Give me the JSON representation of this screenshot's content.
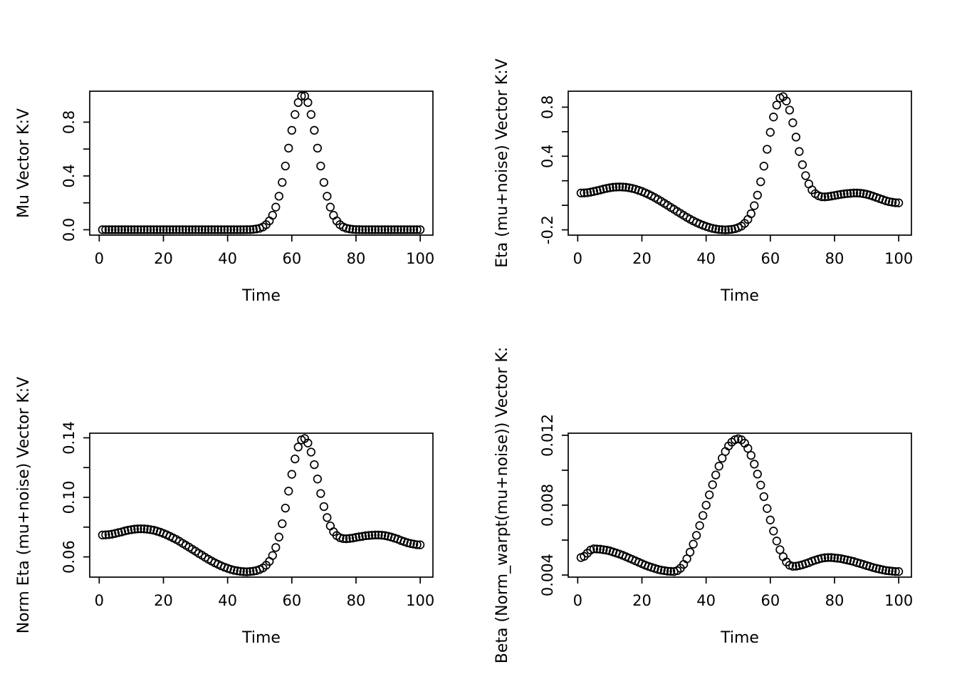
{
  "page": {
    "background": "#ffffff",
    "foreground": "#000000",
    "point_color": "#000000"
  },
  "x_common": [
    1,
    2,
    3,
    4,
    5,
    6,
    7,
    8,
    9,
    10,
    11,
    12,
    13,
    14,
    15,
    16,
    17,
    18,
    19,
    20,
    21,
    22,
    23,
    24,
    25,
    26,
    27,
    28,
    29,
    30,
    31,
    32,
    33,
    34,
    35,
    36,
    37,
    38,
    39,
    40,
    41,
    42,
    43,
    44,
    45,
    46,
    47,
    48,
    49,
    50,
    51,
    52,
    53,
    54,
    55,
    56,
    57,
    58,
    59,
    60,
    61,
    62,
    63,
    64,
    65,
    66,
    67,
    68,
    69,
    70,
    71,
    72,
    73,
    74,
    75,
    76,
    77,
    78,
    79,
    80,
    81,
    82,
    83,
    84,
    85,
    86,
    87,
    88,
    89,
    90,
    91,
    92,
    93,
    94,
    95,
    96,
    97,
    98,
    99,
    100
  ],
  "chart_data": [
    {
      "type": "scatter",
      "point_style": "open-circle",
      "title": "",
      "xlabel": "Time",
      "ylabel": "Mu Vector K:V",
      "xlim": [
        -2.96,
        103.96
      ],
      "ylim": [
        -0.04,
        1.03
      ],
      "xticks": [
        {
          "v": 0,
          "label": "0"
        },
        {
          "v": 20,
          "label": "20"
        },
        {
          "v": 40,
          "label": "40"
        },
        {
          "v": 60,
          "label": "60"
        },
        {
          "v": 80,
          "label": "80"
        },
        {
          "v": 100,
          "label": "100"
        }
      ],
      "yticks": [
        {
          "v": 0.0,
          "label": "0.0"
        },
        {
          "v": 0.2,
          "label": ""
        },
        {
          "v": 0.4,
          "label": "0.4"
        },
        {
          "v": 0.6,
          "label": ""
        },
        {
          "v": 0.8,
          "label": "0.8"
        }
      ],
      "y": [
        0,
        0,
        0,
        0,
        0,
        0,
        0,
        0,
        0,
        0,
        0,
        0,
        0,
        0,
        0,
        0,
        0,
        0,
        0,
        0,
        0,
        0,
        0,
        0,
        0,
        0,
        0,
        0,
        0,
        0,
        0,
        0,
        0,
        0,
        0,
        0,
        0,
        0,
        0,
        0,
        0,
        0,
        0,
        0,
        0,
        0.001,
        0.001,
        0.003,
        0.006,
        0.011,
        0.021,
        0.038,
        0.066,
        0.108,
        0.168,
        0.249,
        0.352,
        0.474,
        0.607,
        0.739,
        0.857,
        0.946,
        0.994,
        0.994,
        0.946,
        0.857,
        0.739,
        0.607,
        0.474,
        0.352,
        0.249,
        0.168,
        0.108,
        0.066,
        0.038,
        0.021,
        0.011,
        0.006,
        0.003,
        0.001,
        0.001,
        0,
        0,
        0,
        0,
        0,
        0,
        0,
        0,
        0,
        0,
        0,
        0,
        0,
        0,
        0,
        0,
        0,
        0,
        0
      ]
    },
    {
      "type": "scatter",
      "point_style": "open-circle",
      "title": "",
      "xlabel": "Time",
      "ylabel": "Eta (mu+noise) Vector K:V",
      "xlim": [
        -2.96,
        103.96
      ],
      "ylim": [
        -0.243,
        0.93
      ],
      "xticks": [
        {
          "v": 0,
          "label": "0"
        },
        {
          "v": 20,
          "label": "20"
        },
        {
          "v": 40,
          "label": "40"
        },
        {
          "v": 60,
          "label": "60"
        },
        {
          "v": 80,
          "label": "80"
        },
        {
          "v": 100,
          "label": "100"
        }
      ],
      "yticks": [
        {
          "v": -0.2,
          "label": "-0.2"
        },
        {
          "v": 0.0,
          "label": ""
        },
        {
          "v": 0.2,
          "label": ""
        },
        {
          "v": 0.4,
          "label": "0.4"
        },
        {
          "v": 0.6,
          "label": ""
        },
        {
          "v": 0.8,
          "label": "0.8"
        }
      ],
      "y": [
        0.1,
        0.101,
        0.103,
        0.107,
        0.113,
        0.119,
        0.125,
        0.132,
        0.138,
        0.143,
        0.147,
        0.149,
        0.15,
        0.149,
        0.147,
        0.143,
        0.138,
        0.131,
        0.122,
        0.113,
        0.102,
        0.09,
        0.077,
        0.063,
        0.048,
        0.032,
        0.016,
        0.0,
        -0.017,
        -0.033,
        -0.05,
        -0.066,
        -0.082,
        -0.098,
        -0.113,
        -0.127,
        -0.14,
        -0.152,
        -0.163,
        -0.172,
        -0.181,
        -0.188,
        -0.193,
        -0.197,
        -0.199,
        -0.2,
        -0.198,
        -0.196,
        -0.191,
        -0.182,
        -0.169,
        -0.147,
        -0.115,
        -0.068,
        -0.003,
        0.083,
        0.192,
        0.319,
        0.457,
        0.595,
        0.72,
        0.817,
        0.875,
        0.886,
        0.85,
        0.776,
        0.673,
        0.556,
        0.438,
        0.331,
        0.242,
        0.174,
        0.126,
        0.095,
        0.078,
        0.07,
        0.069,
        0.071,
        0.075,
        0.08,
        0.085,
        0.089,
        0.093,
        0.096,
        0.098,
        0.1,
        0.1,
        0.099,
        0.095,
        0.09,
        0.083,
        0.074,
        0.065,
        0.055,
        0.046,
        0.037,
        0.03,
        0.025,
        0.021,
        0.02
      ]
    },
    {
      "type": "scatter",
      "point_style": "open-circle",
      "title": "",
      "xlabel": "Time",
      "ylabel": "Norm Eta (mu+noise) Vector K:V",
      "xlim": [
        -2.96,
        103.96
      ],
      "ylim": [
        0.0464,
        0.1431
      ],
      "xticks": [
        {
          "v": 0,
          "label": "0"
        },
        {
          "v": 20,
          "label": "20"
        },
        {
          "v": 40,
          "label": "40"
        },
        {
          "v": 60,
          "label": "60"
        },
        {
          "v": 80,
          "label": "80"
        },
        {
          "v": 100,
          "label": "100"
        }
      ],
      "yticks": [
        {
          "v": 0.06,
          "label": "0.06"
        },
        {
          "v": 0.08,
          "label": ""
        },
        {
          "v": 0.1,
          "label": "0.10"
        },
        {
          "v": 0.12,
          "label": ""
        },
        {
          "v": 0.14,
          "label": "0.14"
        }
      ],
      "y": [
        0.0747,
        0.0748,
        0.075,
        0.0753,
        0.0758,
        0.0763,
        0.0768,
        0.0774,
        0.0779,
        0.0783,
        0.0786,
        0.0788,
        0.0789,
        0.0788,
        0.0786,
        0.0783,
        0.0779,
        0.0773,
        0.0766,
        0.0758,
        0.0749,
        0.0739,
        0.0728,
        0.0717,
        0.0705,
        0.0691,
        0.0678,
        0.0665,
        0.0651,
        0.0638,
        0.0624,
        0.0611,
        0.0597,
        0.0584,
        0.0572,
        0.056,
        0.055,
        0.054,
        0.0531,
        0.0523,
        0.0516,
        0.051,
        0.0506,
        0.0503,
        0.0501,
        0.05,
        0.0502,
        0.0504,
        0.0508,
        0.0515,
        0.0526,
        0.0544,
        0.057,
        0.0609,
        0.0663,
        0.0733,
        0.0823,
        0.0928,
        0.1042,
        0.1155,
        0.1258,
        0.1338,
        0.1386,
        0.1395,
        0.1365,
        0.1304,
        0.122,
        0.1123,
        0.1026,
        0.0938,
        0.0864,
        0.0808,
        0.0769,
        0.0743,
        0.0729,
        0.0723,
        0.0722,
        0.0724,
        0.0727,
        0.0731,
        0.0735,
        0.0738,
        0.0742,
        0.0744,
        0.0746,
        0.0747,
        0.0747,
        0.0746,
        0.0743,
        0.0739,
        0.0733,
        0.0726,
        0.0719,
        0.071,
        0.0703,
        0.0695,
        0.069,
        0.0686,
        0.0682,
        0.0681
      ]
    },
    {
      "type": "scatter",
      "point_style": "open-circle",
      "title": "",
      "xlabel": "Time",
      "ylabel": "Beta (Norm_warpt(mu+noise)) Vector K:",
      "xlim": [
        -2.96,
        103.96
      ],
      "ylim": [
        0.00388,
        0.01212
      ],
      "xticks": [
        {
          "v": 0,
          "label": "0"
        },
        {
          "v": 20,
          "label": "20"
        },
        {
          "v": 40,
          "label": "40"
        },
        {
          "v": 60,
          "label": "60"
        },
        {
          "v": 80,
          "label": "80"
        },
        {
          "v": 100,
          "label": "100"
        }
      ],
      "yticks": [
        {
          "v": 0.004,
          "label": "0.004"
        },
        {
          "v": 0.006,
          "label": ""
        },
        {
          "v": 0.008,
          "label": "0.008"
        },
        {
          "v": 0.01,
          "label": ""
        },
        {
          "v": 0.012,
          "label": "0.012"
        }
      ],
      "y": [
        0.005,
        0.00507,
        0.00525,
        0.00543,
        0.0055,
        0.00549,
        0.00548,
        0.00545,
        0.00542,
        0.00538,
        0.00532,
        0.00526,
        0.0052,
        0.00513,
        0.00505,
        0.00497,
        0.00489,
        0.00481,
        0.00473,
        0.00465,
        0.00457,
        0.0045,
        0.00444,
        0.00438,
        0.00432,
        0.00428,
        0.00425,
        0.00422,
        0.00421,
        0.0042,
        0.00425,
        0.00439,
        0.00461,
        0.00493,
        0.00531,
        0.00577,
        0.00627,
        0.00683,
        0.00741,
        0.008,
        0.00859,
        0.00917,
        0.00973,
        0.01023,
        0.01069,
        0.01107,
        0.01139,
        0.01161,
        0.01175,
        0.0118,
        0.01174,
        0.01155,
        0.01125,
        0.01085,
        0.01035,
        0.00978,
        0.00915,
        0.00849,
        0.00781,
        0.00715,
        0.00652,
        0.00595,
        0.00545,
        0.00505,
        0.00475,
        0.00456,
        0.0045,
        0.00451,
        0.00454,
        0.00459,
        0.00465,
        0.00471,
        0.00479,
        0.00485,
        0.00491,
        0.00496,
        0.00499,
        0.005,
        0.005,
        0.00498,
        0.00496,
        0.00494,
        0.0049,
        0.00486,
        0.00482,
        0.00477,
        0.00471,
        0.00466,
        0.0046,
        0.00454,
        0.00449,
        0.00443,
        0.00438,
        0.00434,
        0.0043,
        0.00426,
        0.00424,
        0.00422,
        0.0042,
        0.0042
      ]
    }
  ]
}
